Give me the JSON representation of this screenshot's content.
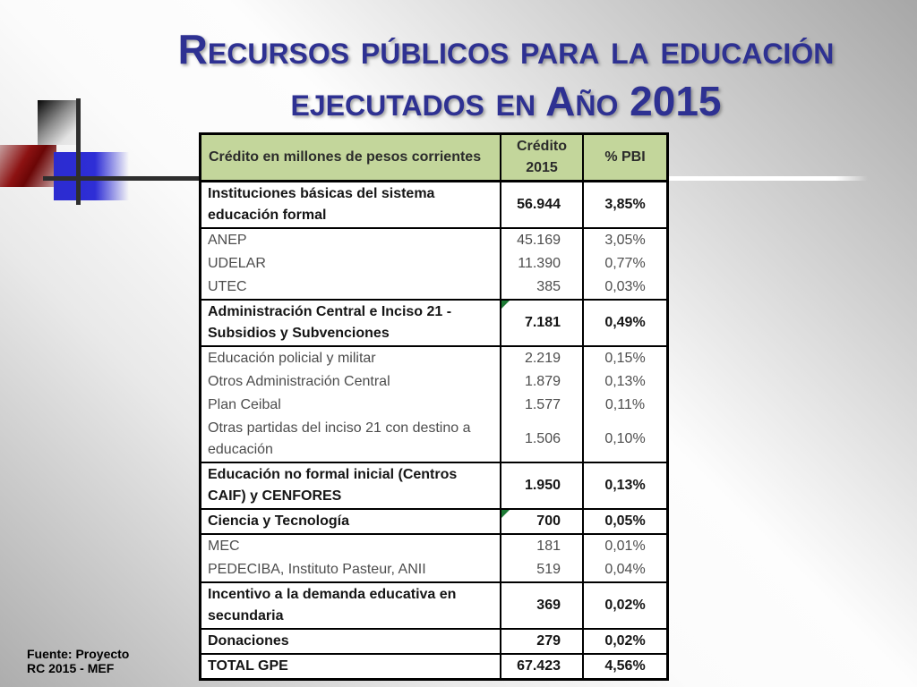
{
  "slide": {
    "title": {
      "line1": "Recursos públicos para la educación",
      "line2": "ejecutados en Año 2015",
      "color": "#2e3192"
    },
    "footer": {
      "line1": "Fuente: Proyecto",
      "line2": "RC 2015 - MEF"
    },
    "decoration_colors": {
      "blue_square": "#2b2bd0",
      "red_square": "#8c1212",
      "gray_square_dark": "#050505",
      "line_dark": "#2e2e2e",
      "line_white": "#ffffff"
    }
  },
  "table": {
    "header": {
      "col1": "Crédito en millones de pesos corrientes",
      "col2": "Crédito 2015",
      "col3": "% PBI",
      "bg_color": "#c3d69b"
    },
    "comment_marker_color": "#1d7a35",
    "rows": [
      {
        "label": "Instituciones básicas del sistema educación formal",
        "credito": "56.944",
        "pbi": "3,85%",
        "bold": true,
        "sep": true,
        "comment": false
      },
      {
        "label": "ANEP",
        "credito": "45.169",
        "pbi": "3,05%",
        "bold": false,
        "sep": true,
        "comment": false
      },
      {
        "label": "UDELAR",
        "credito": "11.390",
        "pbi": "0,77%",
        "bold": false,
        "sep": false,
        "comment": false
      },
      {
        "label": "UTEC",
        "credito": "385",
        "pbi": "0,03%",
        "bold": false,
        "sep": false,
        "comment": false
      },
      {
        "label": "Administración Central e Inciso 21 - Subsidios y Subvenciones",
        "credito": "7.181",
        "pbi": "0,49%",
        "bold": true,
        "sep": true,
        "comment": true
      },
      {
        "label": "Educación policial y militar",
        "credito": "2.219",
        "pbi": "0,15%",
        "bold": false,
        "sep": true,
        "comment": false
      },
      {
        "label": "Otros Administración Central",
        "credito": "1.879",
        "pbi": "0,13%",
        "bold": false,
        "sep": false,
        "comment": false
      },
      {
        "label": "Plan Ceibal",
        "credito": "1.577",
        "pbi": "0,11%",
        "bold": false,
        "sep": false,
        "comment": false
      },
      {
        "label": "Otras partidas del inciso 21 con destino a educación",
        "credito": "1.506",
        "pbi": "0,10%",
        "bold": false,
        "sep": false,
        "comment": false
      },
      {
        "label": "Educación no formal inicial (Centros CAIF) y CENFORES",
        "credito": "1.950",
        "pbi": "0,13%",
        "bold": true,
        "sep": true,
        "comment": false
      },
      {
        "label": "Ciencia y Tecnología",
        "credito": "700",
        "pbi": "0,05%",
        "bold": true,
        "sep": true,
        "comment": true
      },
      {
        "label": "MEC",
        "credito": "181",
        "pbi": "0,01%",
        "bold": false,
        "sep": true,
        "comment": false
      },
      {
        "label": "PEDECIBA, Instituto Pasteur, ANII",
        "credito": "519",
        "pbi": "0,04%",
        "bold": false,
        "sep": false,
        "comment": false
      },
      {
        "label": "Incentivo a la demanda educativa en secundaria",
        "credito": "369",
        "pbi": "0,02%",
        "bold": true,
        "sep": true,
        "comment": false
      },
      {
        "label": "Donaciones",
        "credito": "279",
        "pbi": "0,02%",
        "bold": true,
        "sep": true,
        "comment": false
      },
      {
        "label": "TOTAL GPE",
        "credito": "67.423",
        "pbi": "4,56%",
        "bold": true,
        "sep": true,
        "comment": false
      }
    ]
  }
}
